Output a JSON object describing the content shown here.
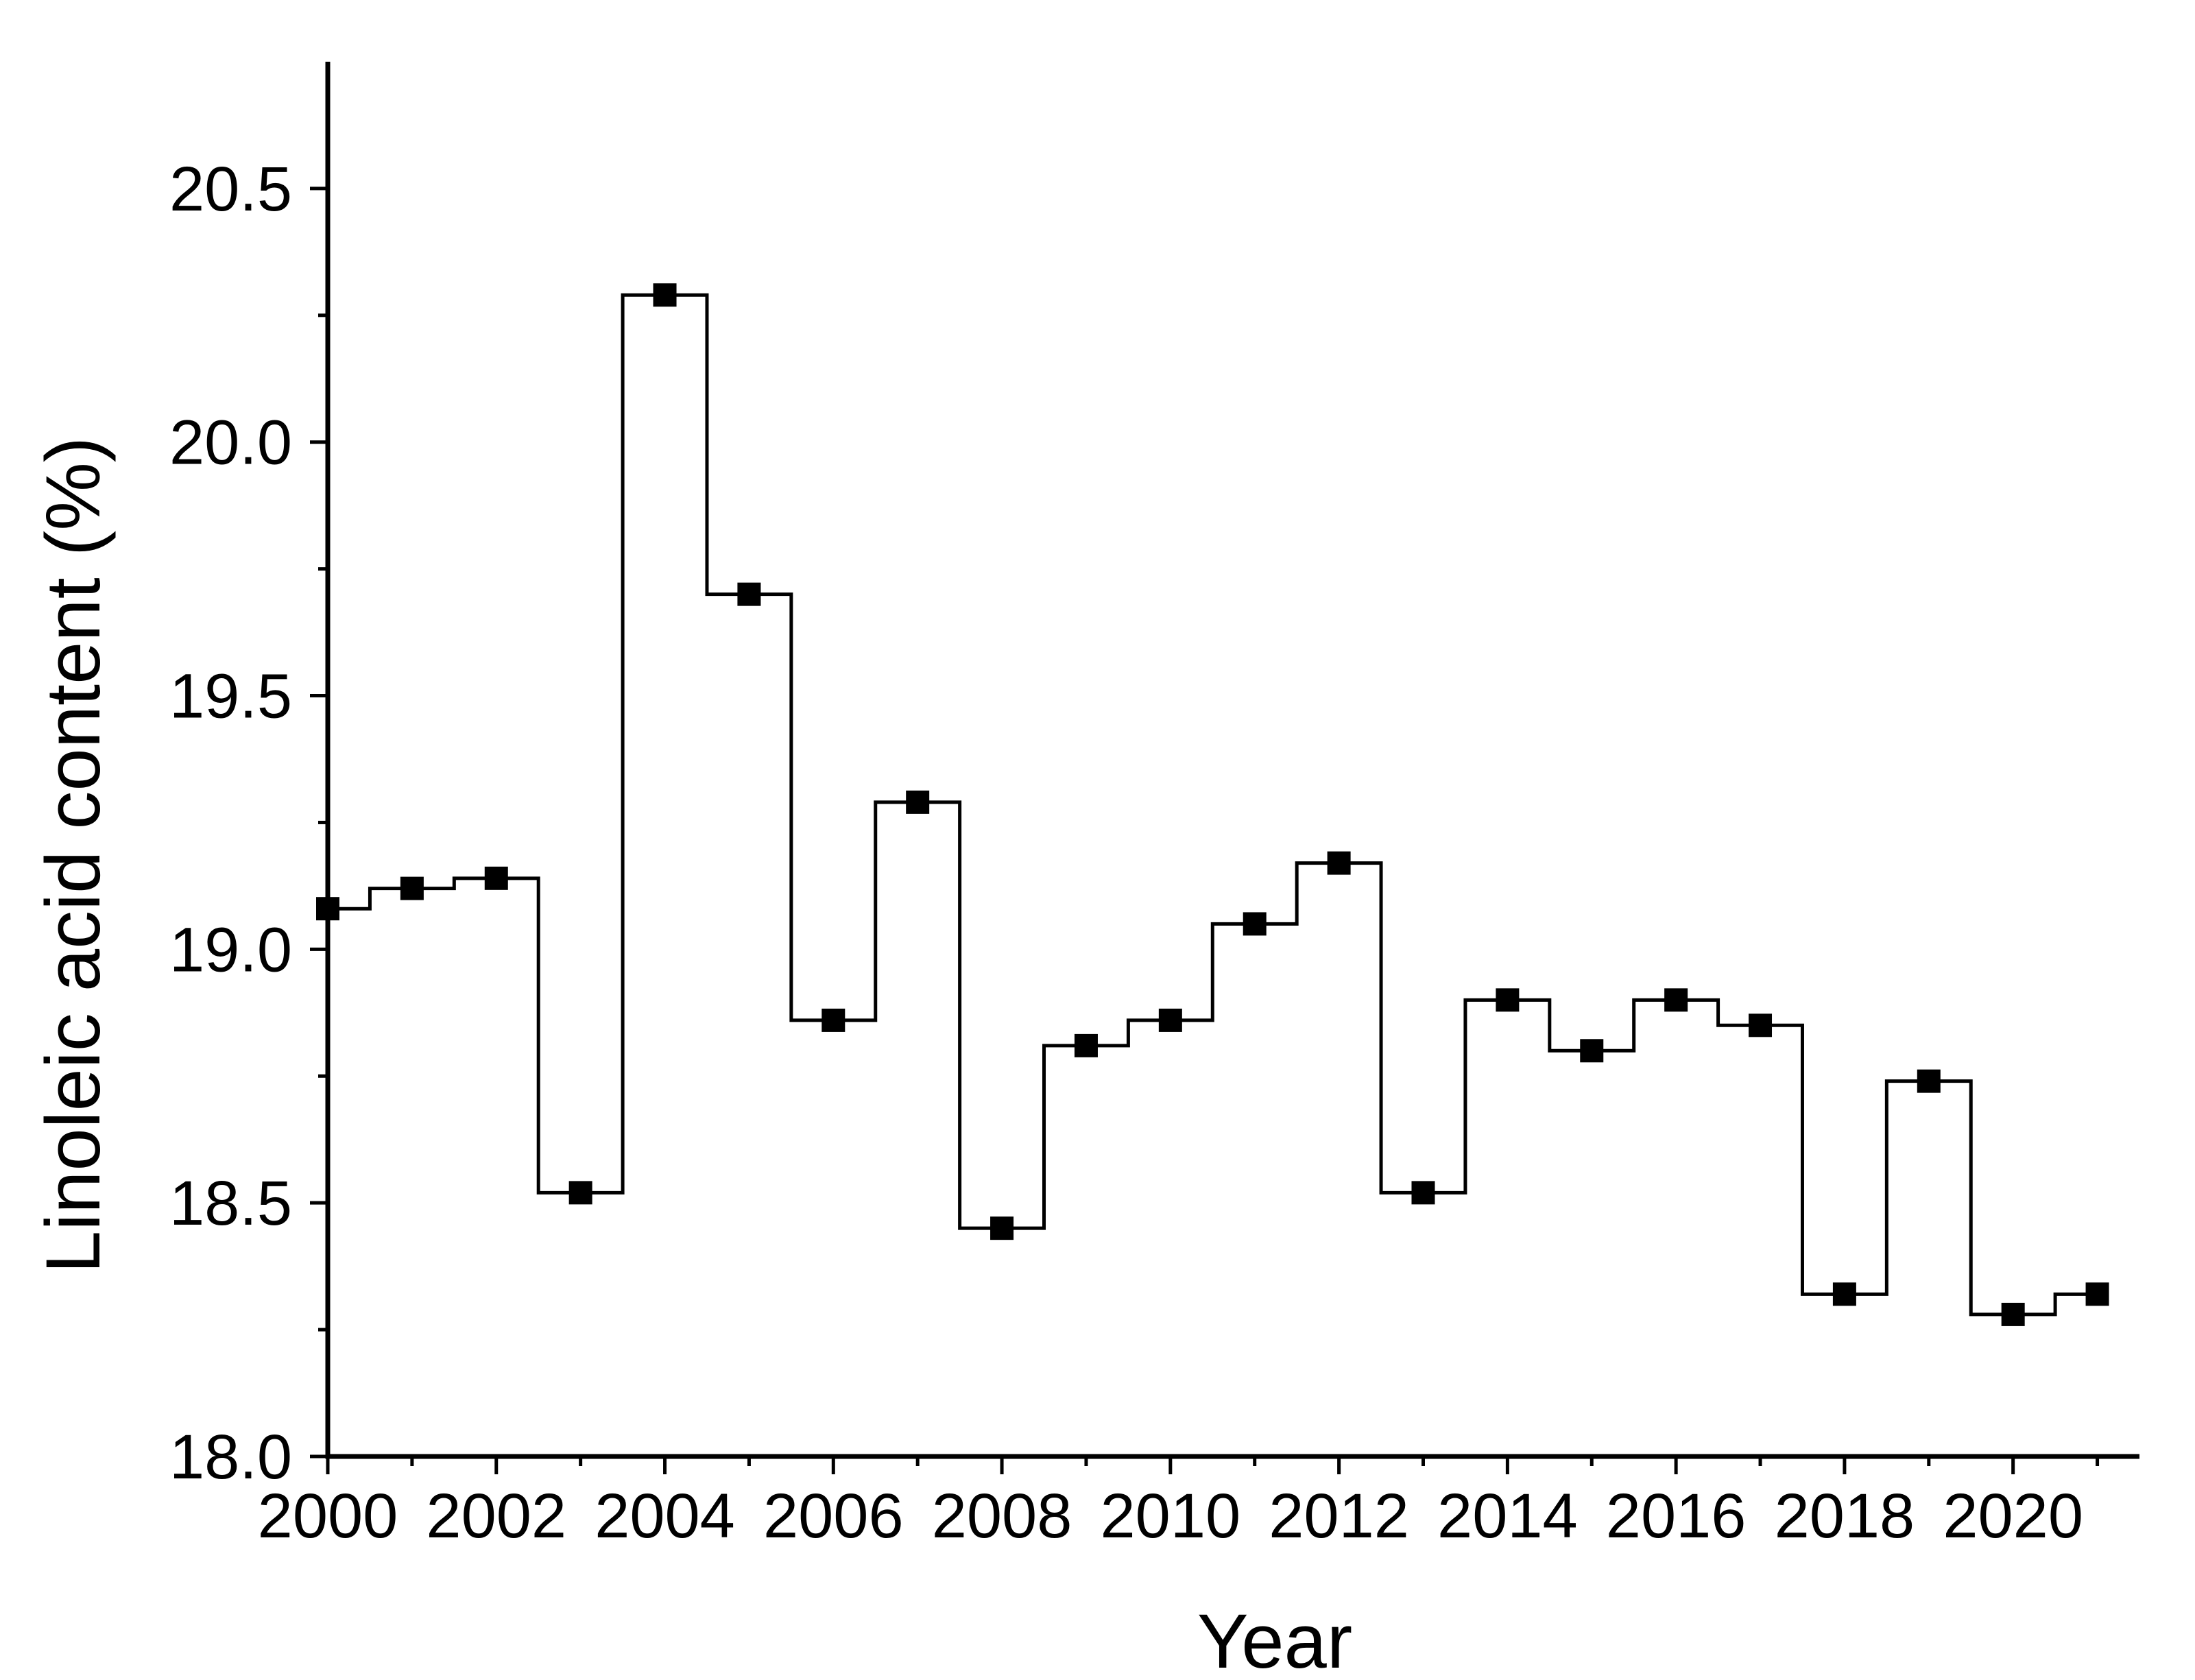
{
  "chart_data": {
    "type": "line",
    "step": "center",
    "title": "",
    "xlabel": "Year",
    "ylabel": "Linoleic acid content (%)",
    "xlim": [
      2000,
      2021.5
    ],
    "ylim": [
      18.0,
      20.75
    ],
    "x_ticks": [
      2000,
      2002,
      2004,
      2006,
      2008,
      2010,
      2012,
      2014,
      2016,
      2018,
      2020
    ],
    "x_tick_labels": [
      "2000",
      "2002",
      "2004",
      "2006",
      "2008",
      "2010",
      "2012",
      "2014",
      "2016",
      "2018",
      "2020"
    ],
    "y_ticks": [
      18.0,
      18.5,
      19.0,
      19.5,
      20.0,
      20.5
    ],
    "y_tick_labels": [
      "18.0",
      "18.5",
      "19.0",
      "19.5",
      "20.0",
      "20.5"
    ],
    "grid": false,
    "legend": "none",
    "marker": "square",
    "color": "#000000",
    "series": [
      {
        "x": [
          2000,
          2001,
          2002,
          2003,
          2004,
          2005,
          2006,
          2007,
          2008,
          2009,
          2010,
          2011,
          2012,
          2013,
          2014,
          2015,
          2016,
          2017,
          2018,
          2019,
          2020,
          2021
        ],
        "values": [
          19.08,
          19.12,
          19.14,
          18.52,
          20.29,
          19.7,
          18.86,
          19.29,
          18.45,
          18.81,
          18.86,
          19.05,
          19.17,
          18.52,
          18.9,
          18.8,
          18.9,
          18.85,
          18.32,
          18.74,
          18.28,
          18.32
        ]
      }
    ]
  }
}
